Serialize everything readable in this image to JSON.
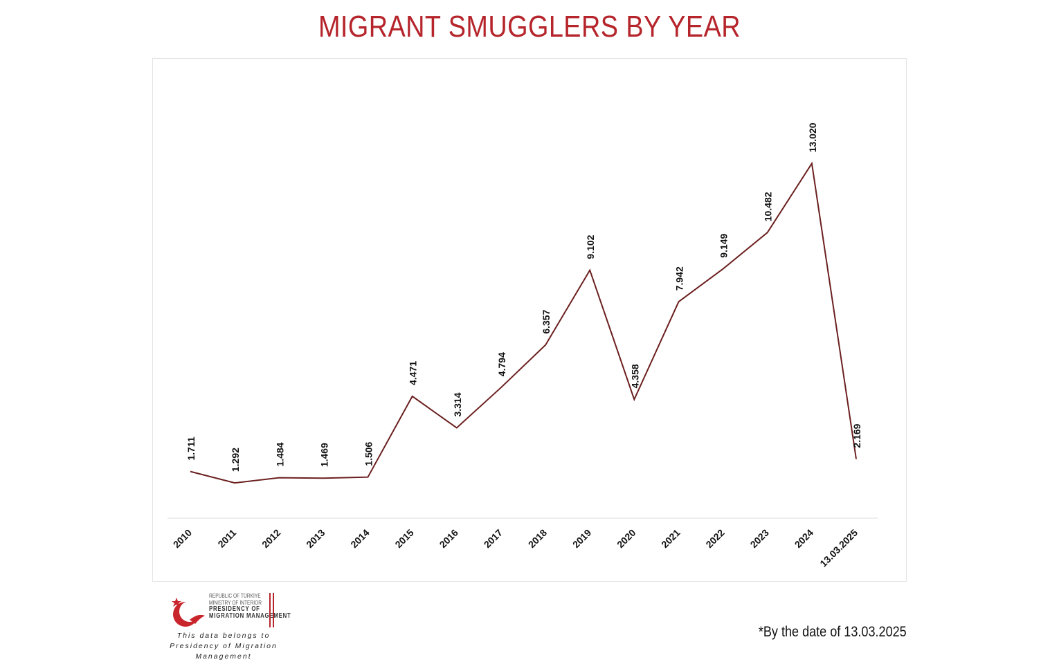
{
  "title": "MIGRANT SMUGGLERS BY YEAR",
  "footnote": "*By the date of 13.03.2025",
  "logo": {
    "line1": "REPUBLIC OF TÜRKİYE",
    "line2": "MINISTRY OF INTERIOR",
    "line3": "PRESIDENCY OF",
    "line4": "MIGRATION MANAGEMENT",
    "icon": "crescent-star-bird-emblem"
  },
  "credit": {
    "line1": "This data belongs to",
    "line2": "Presidency of Migration Management"
  },
  "colors": {
    "title": "#b5252b",
    "line": "#6b1f1f",
    "axis": "#dddddd",
    "label": "#111111"
  },
  "chart_data": {
    "type": "line",
    "title": "MIGRANT SMUGGLERS BY YEAR",
    "xlabel": "",
    "ylabel": "",
    "categories": [
      "2010",
      "2011",
      "2012",
      "2013",
      "2014",
      "2015",
      "2016",
      "2017",
      "2018",
      "2019",
      "2020",
      "2021",
      "2022",
      "2023",
      "2024",
      "13.03.2025"
    ],
    "values": [
      1711,
      1292,
      1484,
      1469,
      1506,
      4471,
      3314,
      4794,
      6357,
      9102,
      4358,
      7942,
      9149,
      10482,
      13020,
      2169
    ],
    "value_labels": [
      "1.711",
      "1.292",
      "1.484",
      "1.469",
      "1.506",
      "4.471",
      "3.314",
      "4.794",
      "6.357",
      "9.102",
      "4.358",
      "7.942",
      "9.149",
      "10.482",
      "13.020",
      "2.169"
    ],
    "ylim": [
      0,
      14500
    ],
    "grid": false,
    "legend": "none"
  }
}
